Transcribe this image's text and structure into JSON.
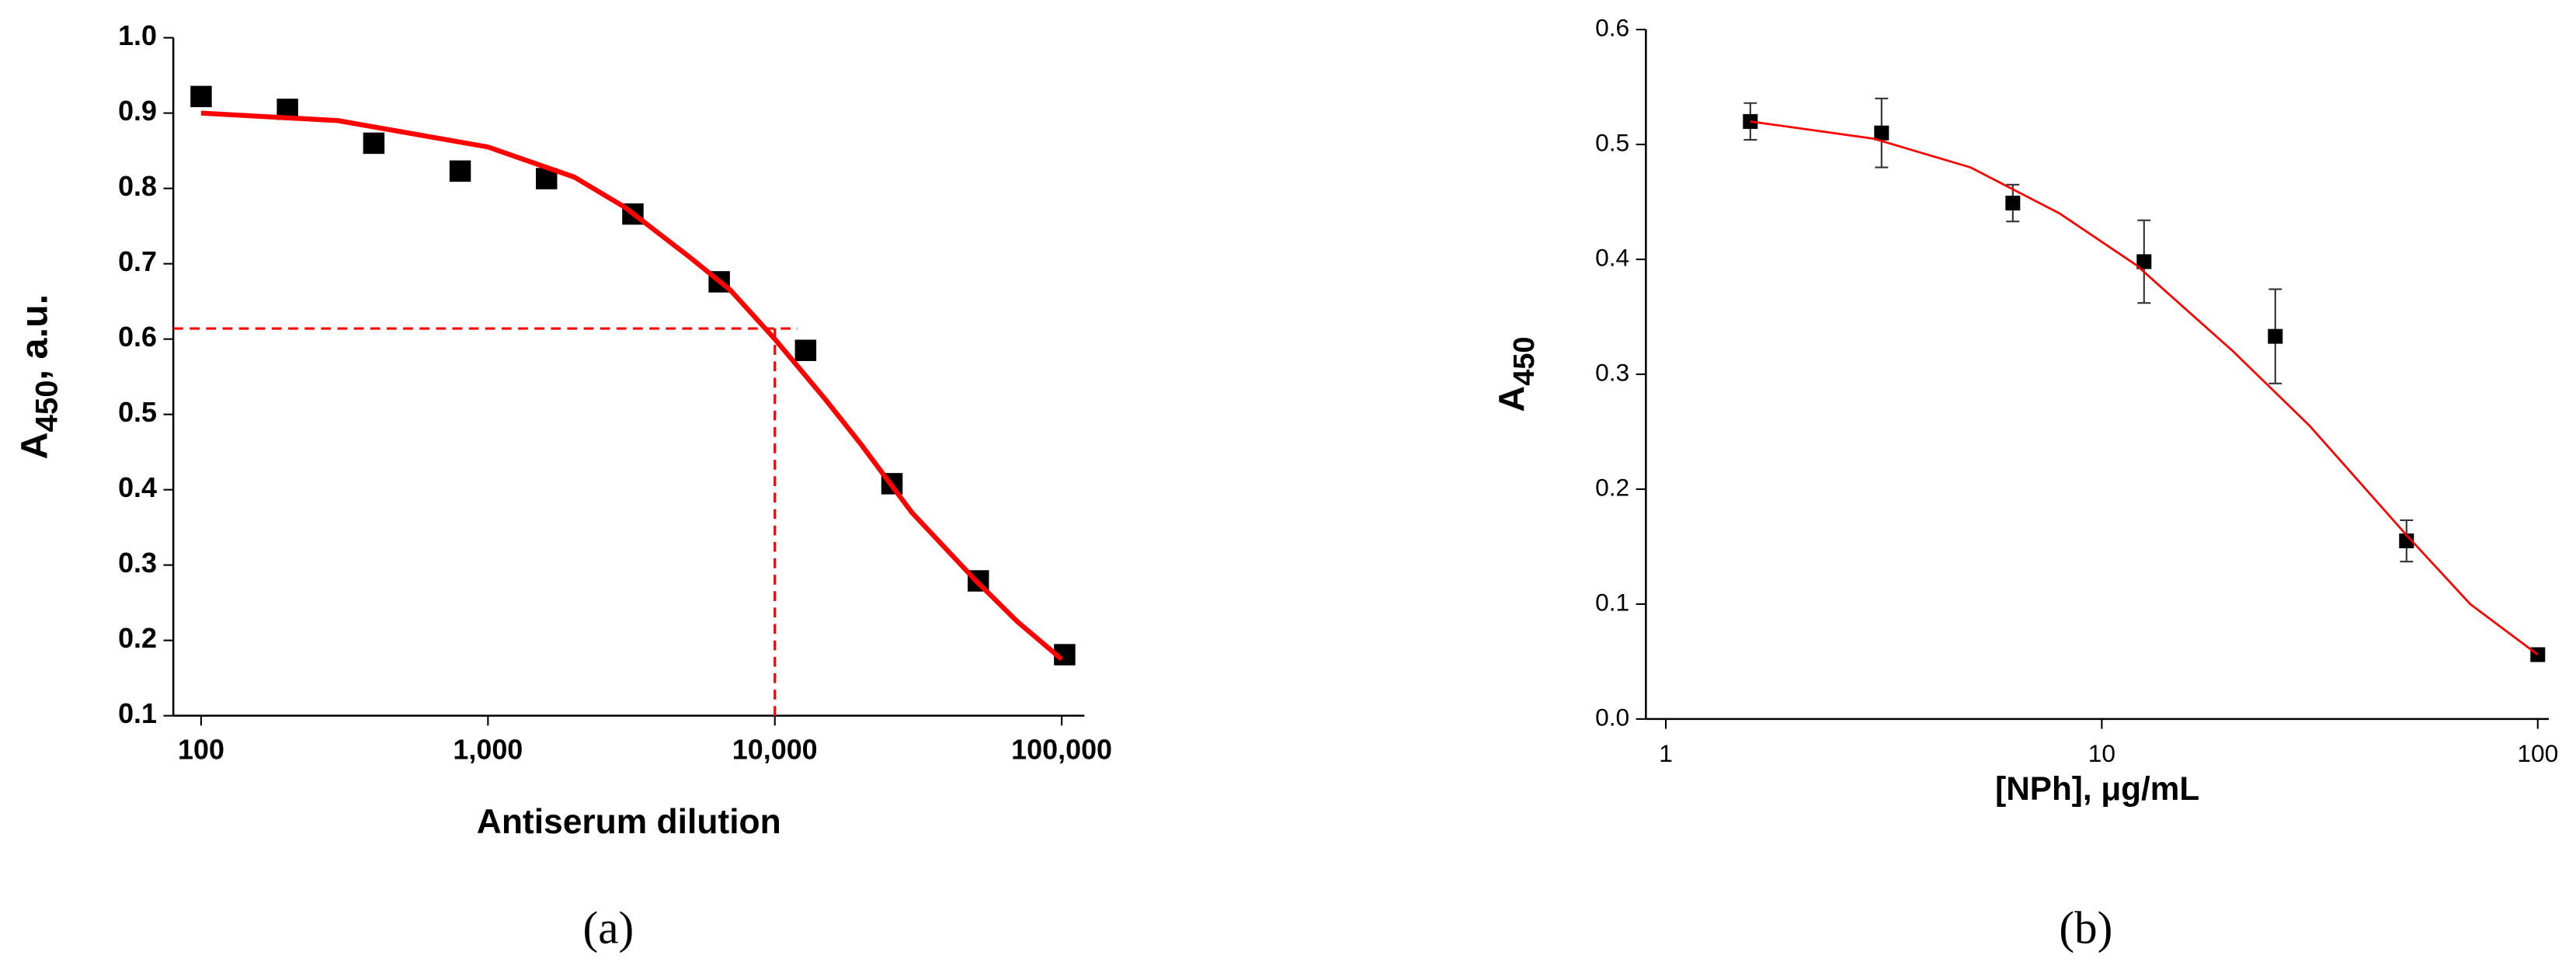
{
  "chart_data": [
    {
      "type": "scatter",
      "panel_label": "(a)",
      "xlabel": "Antiserum dilution",
      "ylabel": {
        "main": "A",
        "sub": "450",
        "rest": ", a.u."
      },
      "xscale": "log",
      "xlim": [
        80,
        120000
      ],
      "ylim": [
        0.1,
        1.0
      ],
      "xticks": [
        100,
        {
          "value": 1000,
          "label": "1,000"
        },
        {
          "value": 10000,
          "label": "10,000"
        },
        {
          "value": 100000,
          "label": "100,000"
        }
      ],
      "yticks": [
        0.1,
        0.2,
        0.3,
        0.4,
        0.5,
        0.6,
        0.7,
        0.8,
        0.9,
        {
          "value": 1.0,
          "label": "1.0"
        }
      ],
      "font_weight": "bold",
      "series": [
        {
          "style": "markers",
          "color": "#000000",
          "x": [
            100,
            200,
            400,
            800,
            1600,
            3200,
            6400,
            12800,
            25600,
            51200,
            102400
          ],
          "values": [
            0.922,
            0.905,
            0.86,
            0.823,
            0.813,
            0.766,
            0.676,
            0.585,
            0.408,
            0.279,
            0.181
          ]
        },
        {
          "style": "line",
          "color": "#ff0000",
          "x": [
            100,
            300,
            1000,
            2000,
            3000,
            5000,
            7000,
            10000,
            15000,
            20000,
            30000,
            50000,
            70000,
            100000
          ],
          "values": [
            0.9,
            0.89,
            0.855,
            0.815,
            0.775,
            0.71,
            0.665,
            0.6,
            0.52,
            0.46,
            0.37,
            0.28,
            0.225,
            0.175
          ]
        },
        {
          "style": "dashed",
          "color": "#ff0000",
          "x": [
            80,
            12000
          ],
          "values": [
            0.614,
            0.614
          ]
        },
        {
          "style": "dashed",
          "color": "#ff0000",
          "x": [
            10000,
            10000
          ],
          "values": [
            0.614,
            0.1
          ]
        }
      ]
    },
    {
      "type": "scatter",
      "panel_label": "(b)",
      "xlabel": "[NPh], μg/mL",
      "ylabel": {
        "main": "A",
        "sub": "450"
      },
      "xscale": "log",
      "xlim": [
        0.9,
        106
      ],
      "ylim": [
        0,
        0.6
      ],
      "xticks": [
        1,
        10,
        100
      ],
      "yticks": [
        {
          "value": 0,
          "label": "0.0"
        },
        0.1,
        0.2,
        0.3,
        0.4,
        0.5,
        0.6
      ],
      "font_weight": "normal",
      "series": [
        {
          "style": "markers",
          "color": "#000000",
          "x": [
            1.5625,
            3.125,
            6.25,
            12.5,
            25,
            50,
            100
          ],
          "values": [
            0.52,
            0.51,
            0.449,
            0.398,
            0.333,
            0.155,
            0.056
          ],
          "errors": [
            0.016,
            0.03,
            0.016,
            0.036,
            0.041,
            0.018,
            0.003
          ]
        },
        {
          "style": "line",
          "color": "#ff0000",
          "x": [
            1.5625,
            3,
            5,
            8,
            12,
            20,
            30,
            50,
            70,
            100
          ],
          "values": [
            0.52,
            0.505,
            0.48,
            0.44,
            0.395,
            0.32,
            0.255,
            0.16,
            0.1,
            0.056
          ]
        }
      ]
    }
  ]
}
